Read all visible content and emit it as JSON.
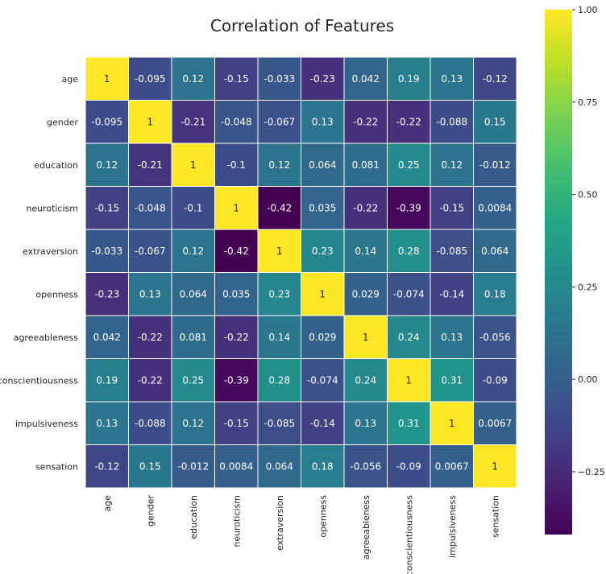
{
  "chart_data": {
    "type": "heatmap",
    "title": "Correlation of Features",
    "labels": [
      "age",
      "gender",
      "education",
      "neuroticism",
      "extraversion",
      "openness",
      "agreeableness",
      "conscientiousness",
      "impulsiveness",
      "sensation"
    ],
    "values": [
      [
        1,
        -0.095,
        0.12,
        -0.15,
        -0.033,
        -0.23,
        0.042,
        0.19,
        0.13,
        -0.12
      ],
      [
        -0.095,
        1,
        -0.21,
        -0.048,
        -0.067,
        0.13,
        -0.22,
        -0.22,
        -0.088,
        0.15
      ],
      [
        0.12,
        -0.21,
        1,
        -0.1,
        0.12,
        0.064,
        0.081,
        0.25,
        0.12,
        -0.012
      ],
      [
        -0.15,
        -0.048,
        -0.1,
        1,
        -0.42,
        0.035,
        -0.22,
        -0.39,
        -0.15,
        0.0084
      ],
      [
        -0.033,
        -0.067,
        0.12,
        -0.42,
        1,
        0.23,
        0.14,
        0.28,
        -0.085,
        0.064
      ],
      [
        -0.23,
        0.13,
        0.064,
        0.035,
        0.23,
        1,
        0.029,
        -0.074,
        -0.14,
        0.18
      ],
      [
        0.042,
        -0.22,
        0.081,
        -0.22,
        0.14,
        0.029,
        1,
        0.24,
        0.13,
        -0.056
      ],
      [
        0.19,
        -0.22,
        0.25,
        -0.39,
        0.28,
        -0.074,
        0.24,
        1,
        0.31,
        -0.09
      ],
      [
        0.13,
        -0.088,
        0.12,
        -0.15,
        -0.085,
        -0.14,
        0.13,
        0.31,
        1,
        0.0067
      ],
      [
        -0.12,
        0.15,
        -0.012,
        0.0084,
        0.064,
        0.18,
        -0.056,
        -0.09,
        0.0067,
        1
      ]
    ],
    "value_labels": [
      [
        "1",
        "-0.095",
        "0.12",
        "-0.15",
        "-0.033",
        "-0.23",
        "0.042",
        "0.19",
        "0.13",
        "-0.12"
      ],
      [
        "-0.095",
        "1",
        "-0.21",
        "-0.048",
        "-0.067",
        "0.13",
        "-0.22",
        "-0.22",
        "-0.088",
        "0.15"
      ],
      [
        "0.12",
        "-0.21",
        "1",
        "-0.1",
        "0.12",
        "0.064",
        "0.081",
        "0.25",
        "0.12",
        "-0.012"
      ],
      [
        "-0.15",
        "-0.048",
        "-0.1",
        "1",
        "-0.42",
        "0.035",
        "-0.22",
        "-0.39",
        "-0.15",
        "0.0084"
      ],
      [
        "-0.033",
        "-0.067",
        "0.12",
        "-0.42",
        "1",
        "0.23",
        "0.14",
        "0.28",
        "-0.085",
        "0.064"
      ],
      [
        "-0.23",
        "0.13",
        "0.064",
        "0.035",
        "0.23",
        "1",
        "0.029",
        "-0.074",
        "-0.14",
        "0.18"
      ],
      [
        "0.042",
        "-0.22",
        "0.081",
        "-0.22",
        "0.14",
        "0.029",
        "1",
        "0.24",
        "0.13",
        "-0.056"
      ],
      [
        "0.19",
        "-0.22",
        "0.25",
        "-0.39",
        "0.28",
        "-0.074",
        "0.24",
        "1",
        "0.31",
        "-0.09"
      ],
      [
        "0.13",
        "-0.088",
        "0.12",
        "-0.15",
        "-0.085",
        "-0.14",
        "0.13",
        "0.31",
        "1",
        "0.0067"
      ],
      [
        "-0.12",
        "0.15",
        "-0.012",
        "0.0084",
        "0.064",
        "0.18",
        "-0.056",
        "-0.09",
        "0.0067",
        "1"
      ]
    ],
    "colormap": "viridis",
    "color_range": [
      -0.42,
      1.0
    ],
    "colorbar_ticks": [
      -0.25,
      0.0,
      0.25,
      0.5,
      0.75,
      1.0
    ],
    "colorbar_tick_labels": [
      "−0.25",
      "0.00",
      "0.25",
      "0.50",
      "0.75",
      "1.00"
    ],
    "cell_border_color": "#ffffff",
    "annotated": true
  }
}
